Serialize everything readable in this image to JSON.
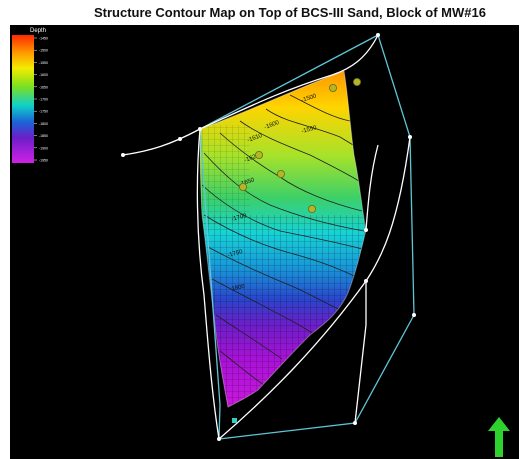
{
  "title": "Structure Contour Map on Top of BCS-III Sand, Block of MW#16",
  "legend": {
    "title": "Depth",
    "ticks": [
      "-1450",
      "-1500",
      "-1550",
      "-1600",
      "-1650",
      "-1700",
      "-1750",
      "-1800",
      "-1850",
      "-1900",
      "-1950"
    ]
  },
  "contour_labels": [
    "-1500",
    "-1550",
    "-1600",
    "-1610",
    "-1620",
    "-1650",
    "-1700",
    "-1750",
    "-1800"
  ],
  "wells_count": 6,
  "north_arrow": {
    "color": "#2fd12f"
  },
  "colors": {
    "background": "#000000",
    "boundary": "#5fc5d6",
    "fault": "#ffffff",
    "contour_line": "#202020",
    "well": "#b5b52a"
  }
}
